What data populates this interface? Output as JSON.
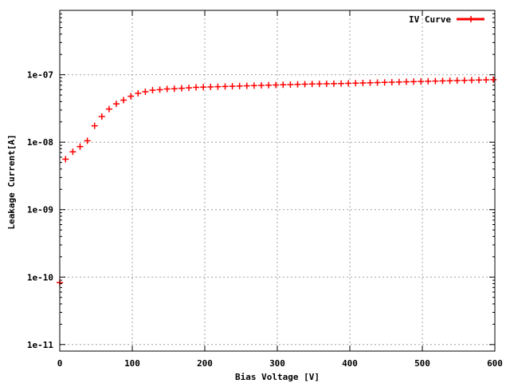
{
  "chart_data": {
    "type": "scatter",
    "xlabel": "Bias Voltage [V]",
    "ylabel": "Leakage Current[A]",
    "xlim": [
      0,
      600
    ],
    "ylim": [
      8e-12,
      9e-07
    ],
    "yscale": "log",
    "x_ticks": [
      "0",
      "100",
      "200",
      "300",
      "400",
      "500",
      "600"
    ],
    "y_ticks": [
      "1e-11",
      "1e-10",
      "1e-09",
      "1e-08",
      "1e-07"
    ],
    "grid": true,
    "legend_position": "top-right",
    "series": [
      {
        "name": "IV Curve",
        "color": "#ff0000",
        "marker": "plus",
        "x": [
          0,
          8,
          18,
          28,
          38,
          48,
          58,
          68,
          78,
          88,
          98,
          108,
          118,
          128,
          138,
          148,
          158,
          168,
          178,
          188,
          198,
          208,
          218,
          228,
          238,
          248,
          258,
          268,
          278,
          288,
          298,
          308,
          318,
          328,
          338,
          348,
          358,
          368,
          378,
          388,
          398,
          408,
          418,
          428,
          438,
          448,
          458,
          468,
          478,
          488,
          498,
          508,
          518,
          528,
          538,
          548,
          558,
          568,
          578,
          588,
          598
        ],
        "y": [
          8.3e-11,
          5.6e-09,
          7.2e-09,
          8.6e-09,
          1.05e-08,
          1.75e-08,
          2.4e-08,
          3.1e-08,
          3.7e-08,
          4.2e-08,
          4.8e-08,
          5.3e-08,
          5.6e-08,
          5.9e-08,
          6e-08,
          6.15e-08,
          6.2e-08,
          6.3e-08,
          6.4e-08,
          6.5e-08,
          6.55e-08,
          6.6e-08,
          6.65e-08,
          6.7e-08,
          6.75e-08,
          6.8e-08,
          6.85e-08,
          6.9e-08,
          6.95e-08,
          7e-08,
          7.05e-08,
          7.1e-08,
          7.15e-08,
          7.2e-08,
          7.25e-08,
          7.3e-08,
          7.32e-08,
          7.35e-08,
          7.38e-08,
          7.4e-08,
          7.45e-08,
          7.5e-08,
          7.55e-08,
          7.6e-08,
          7.65e-08,
          7.7e-08,
          7.75e-08,
          7.8e-08,
          7.85e-08,
          7.9e-08,
          7.95e-08,
          8e-08,
          8.05e-08,
          8.1e-08,
          8.15e-08,
          8.2e-08,
          8.25e-08,
          8.3e-08,
          8.35e-08,
          8.4e-08,
          8.45e-08
        ]
      }
    ]
  }
}
